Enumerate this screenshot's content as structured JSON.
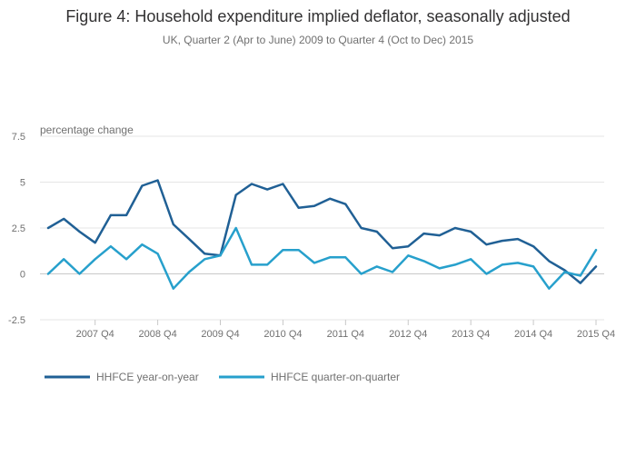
{
  "chart_data": {
    "type": "line",
    "title": "Figure 4: Household expenditure implied deflator, seasonally adjusted",
    "subtitle": "UK, Quarter 2 (Apr to June) 2009 to Quarter 4 (Oct to Dec) 2015",
    "ylabel": "percentage change",
    "ylim": [
      -2.5,
      7.5
    ],
    "yticks": [
      "7.5",
      "5",
      "2.5",
      "0",
      "-2.5"
    ],
    "ytick_values": [
      7.5,
      5,
      2.5,
      0,
      -2.5
    ],
    "grid": true,
    "legend_position": "bottom-left",
    "xtick_labels": [
      "2007 Q4",
      "2008 Q4",
      "2009 Q4",
      "2010 Q4",
      "2011 Q4",
      "2012 Q4",
      "2013 Q4",
      "2014 Q4",
      "2015 Q4"
    ],
    "xtick_indices": [
      3,
      7,
      11,
      15,
      19,
      23,
      27,
      31,
      35
    ],
    "series": [
      {
        "name": "HHFCE year-on-year",
        "color": "#206095",
        "values": [
          2.5,
          3.0,
          2.3,
          1.7,
          3.2,
          3.2,
          4.8,
          5.1,
          2.7,
          1.9,
          1.1,
          1.0,
          4.3,
          4.9,
          4.6,
          4.9,
          3.6,
          3.7,
          4.1,
          3.8,
          2.5,
          2.3,
          1.4,
          1.5,
          2.2,
          2.1,
          2.5,
          2.3,
          1.6,
          1.8,
          1.9,
          1.5,
          0.7,
          0.2,
          -0.5,
          0.4
        ]
      },
      {
        "name": "HHFCE quarter-on-quarter",
        "color": "#27a0cc",
        "values": [
          0.0,
          0.8,
          0.0,
          0.8,
          1.5,
          0.8,
          1.6,
          1.1,
          -0.8,
          0.1,
          0.8,
          1.0,
          2.5,
          0.5,
          0.5,
          1.3,
          1.3,
          0.6,
          0.9,
          0.9,
          0.0,
          0.4,
          0.1,
          1.0,
          0.7,
          0.3,
          0.5,
          0.8,
          0.0,
          0.5,
          0.6,
          0.4,
          -0.8,
          0.1,
          -0.1,
          1.3
        ]
      }
    ]
  }
}
